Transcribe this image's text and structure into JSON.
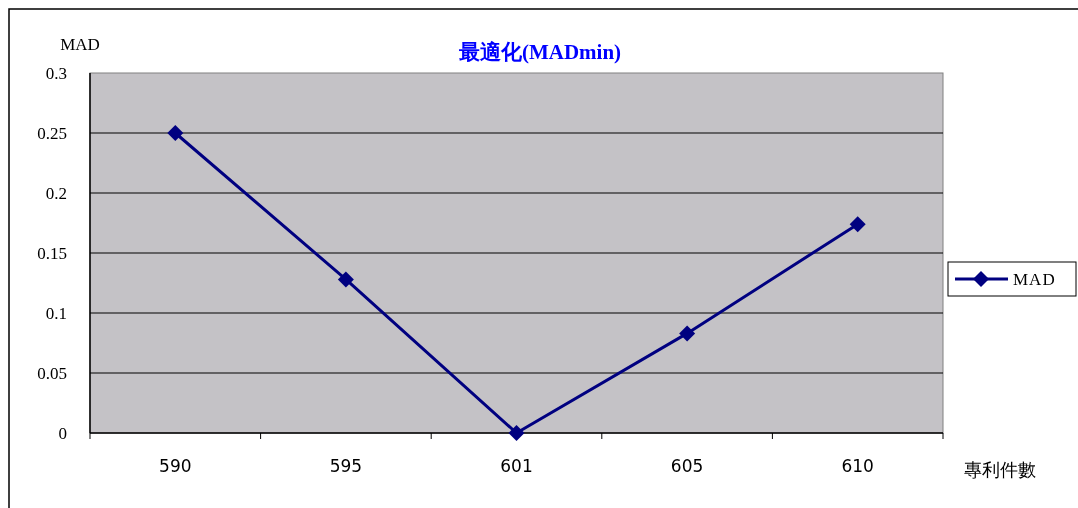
{
  "chart_data": {
    "type": "line",
    "title": "最適化(MADmin)",
    "xlabel": "專利件數",
    "ylabel": "MAD",
    "categories": [
      "590",
      "595",
      "601",
      "605",
      "610"
    ],
    "series": [
      {
        "name": "MAD",
        "color": "#000080",
        "values": [
          0.25,
          0.128,
          0,
          0.083,
          0.174
        ]
      }
    ],
    "ylim": [
      0,
      0.3
    ],
    "yticks": [
      0,
      0.05,
      0.1,
      0.15,
      0.2,
      0.25,
      0.3
    ],
    "grid": "y",
    "legend": "right",
    "marker": "diamond",
    "line_style": "solid"
  }
}
